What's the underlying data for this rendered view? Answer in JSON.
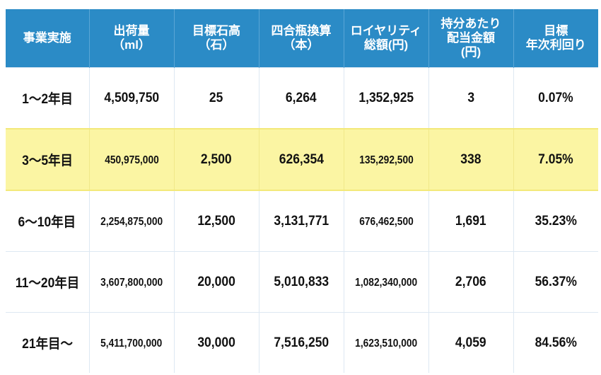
{
  "header": [
    [
      "事業実施"
    ],
    [
      "出荷量",
      "（ml）"
    ],
    [
      "目標石高",
      "（石）"
    ],
    [
      "四合瓶換算",
      "（本）"
    ],
    [
      "ロイヤリティ",
      "総額(円)"
    ],
    [
      "持分あたり",
      "配当金額",
      "(円)"
    ],
    [
      "目標",
      "年次利回り"
    ]
  ],
  "rows": [
    {
      "highlight": false,
      "cells": [
        "1〜2年目",
        "4,509,750",
        "25",
        "6,264",
        "1,352,925",
        "3",
        "0.07%"
      ]
    },
    {
      "highlight": true,
      "cells": [
        "3〜5年目",
        "450,975,000",
        "2,500",
        "626,354",
        "135,292,500",
        "338",
        "7.05%"
      ]
    },
    {
      "highlight": false,
      "cells": [
        "6〜10年目",
        "2,254,875,000",
        "12,500",
        "3,131,771",
        "676,462,500",
        "1,691",
        "35.23%"
      ]
    },
    {
      "highlight": false,
      "cells": [
        "11〜20年目",
        "3,607,800,000",
        "20,000",
        "5,010,833",
        "1,082,340,000",
        "2,706",
        "56.37%"
      ]
    },
    {
      "highlight": false,
      "cells": [
        "21年目〜",
        "5,411,700,000",
        "30,000",
        "7,516,250",
        "1,623,510,000",
        "4,059",
        "84.56%"
      ]
    }
  ],
  "colors": {
    "header_bg": "#2b8bc6",
    "highlight_bg": "#fbf5a3"
  }
}
